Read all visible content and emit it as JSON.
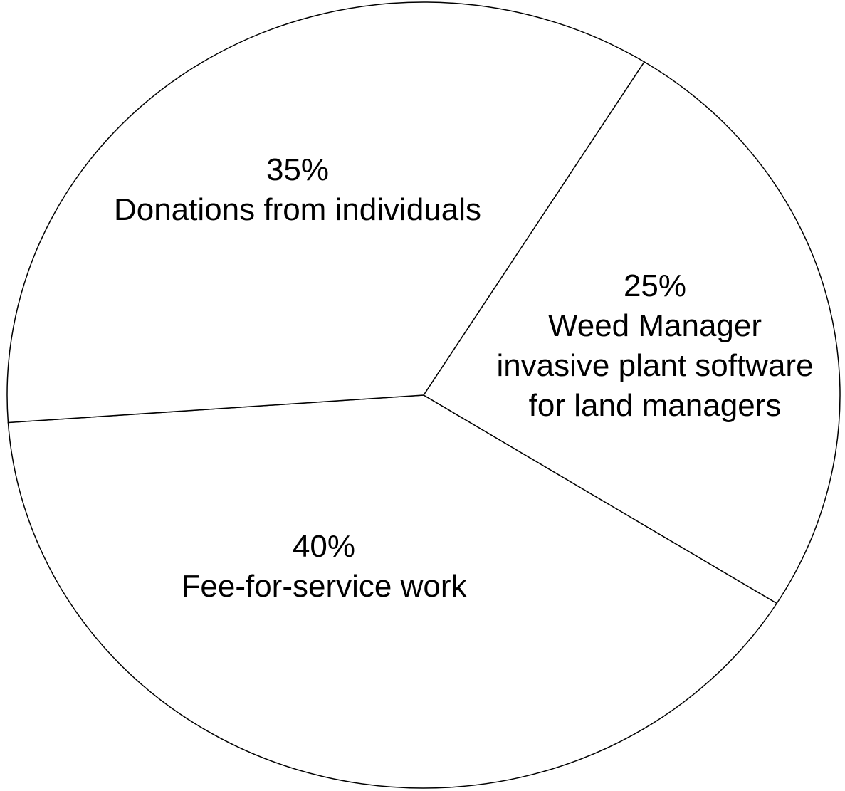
{
  "chart_data": {
    "type": "pie",
    "title": "",
    "slices": [
      {
        "label_lines": [
          "Weed Manager",
          "invasive plant software",
          "for land managers"
        ],
        "percent_label": "25%",
        "value": 25
      },
      {
        "label_lines": [
          "Fee-for-service work"
        ],
        "percent_label": "40%",
        "value": 40
      },
      {
        "label_lines": [
          "Donations from individuals"
        ],
        "percent_label": "35%",
        "value": 35
      }
    ],
    "colors": {
      "fill": "#ffffff",
      "stroke": "#000000",
      "text": "#000000"
    },
    "legend": "none"
  }
}
